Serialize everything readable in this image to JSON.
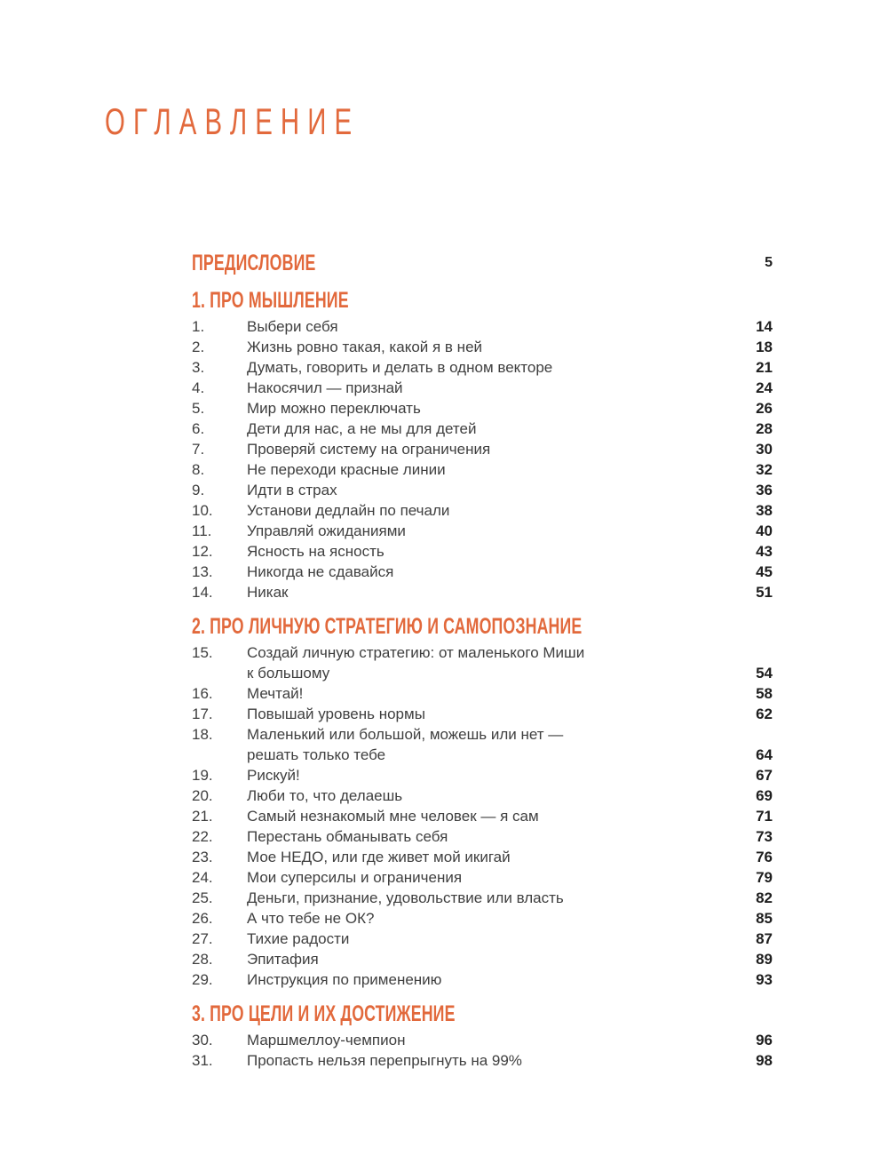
{
  "colors": {
    "accent": "#E2693C",
    "body_text": "#3F3F3F",
    "page_number_text": "#1E1E1E",
    "background": "#FFFFFF"
  },
  "page": {
    "title": "ОГЛАВЛЕНИЕ"
  },
  "toc": {
    "preface": {
      "label": "ПРЕДИСЛОВИЕ",
      "page": "5"
    },
    "sections": [
      {
        "heading": "1. ПРО МЫШЛЕНИЕ",
        "items": [
          {
            "num": "1.",
            "title": "Выбери себя",
            "page": "14"
          },
          {
            "num": "2.",
            "title": "Жизнь ровно такая, какой я в ней",
            "page": "18"
          },
          {
            "num": "3.",
            "title": "Думать, говорить и делать в одном векторе",
            "page": "21"
          },
          {
            "num": "4.",
            "title": "Накосячил — признай",
            "page": "24"
          },
          {
            "num": "5.",
            "title": "Мир можно переключать",
            "page": "26"
          },
          {
            "num": "6.",
            "title": "Дети для нас, а не мы для детей",
            "page": "28"
          },
          {
            "num": "7.",
            "title": "Проверяй систему на ограничения",
            "page": "30"
          },
          {
            "num": "8.",
            "title": "Не переходи красные линии",
            "page": "32"
          },
          {
            "num": "9.",
            "title": "Идти в страх",
            "page": "36"
          },
          {
            "num": "10.",
            "title": "Установи дедлайн по печали",
            "page": "38"
          },
          {
            "num": "11.",
            "title": "Управляй ожиданиями",
            "page": "40"
          },
          {
            "num": "12.",
            "title": "Ясность на ясность",
            "page": "43"
          },
          {
            "num": "13.",
            "title": "Никогда не сдавайся",
            "page": "45"
          },
          {
            "num": "14.",
            "title": "Никак",
            "page": "51"
          }
        ]
      },
      {
        "heading": "2. ПРО ЛИЧНУЮ СТРАТЕГИЮ И САМОПОЗНАНИЕ",
        "items": [
          {
            "num": "15.",
            "title": [
              "Создай личную стратегию: от маленького Миши",
              "к большому"
            ],
            "page": "54"
          },
          {
            "num": "16.",
            "title": "Мечтай!",
            "page": "58"
          },
          {
            "num": "17.",
            "title": "Повышай уровень нормы",
            "page": "62"
          },
          {
            "num": "18.",
            "title": [
              "Маленький или большой, можешь или нет —",
              "решать только тебе"
            ],
            "page": "64"
          },
          {
            "num": "19.",
            "title": "Рискуй!",
            "page": "67"
          },
          {
            "num": "20.",
            "title": "Люби то, что делаешь",
            "page": "69"
          },
          {
            "num": "21.",
            "title": "Самый незнакомый мне человек — я сам",
            "page": "71"
          },
          {
            "num": "22.",
            "title": "Перестань обманывать себя",
            "page": "73"
          },
          {
            "num": "23.",
            "title": "Мое НЕДО, или где живет мой икигай",
            "page": "76"
          },
          {
            "num": "24.",
            "title": "Мои суперсилы и ограничения",
            "page": "79"
          },
          {
            "num": "25.",
            "title": "Деньги, признание, удовольствие или власть",
            "page": "82"
          },
          {
            "num": "26.",
            "title": "А что тебе не ОК?",
            "page": "85"
          },
          {
            "num": "27.",
            "title": "Тихие радости",
            "page": "87"
          },
          {
            "num": "28.",
            "title": "Эпитафия",
            "page": "89"
          },
          {
            "num": "29.",
            "title": "Инструкция по применению",
            "page": "93"
          }
        ]
      },
      {
        "heading": "3. ПРО ЦЕЛИ И ИХ ДОСТИЖЕНИЕ",
        "items": [
          {
            "num": "30.",
            "title": "Маршмеллоу-чемпион",
            "page": "96"
          },
          {
            "num": "31.",
            "title": "Пропасть нельзя перепрыгнуть на 99%",
            "page": "98"
          }
        ]
      }
    ]
  }
}
